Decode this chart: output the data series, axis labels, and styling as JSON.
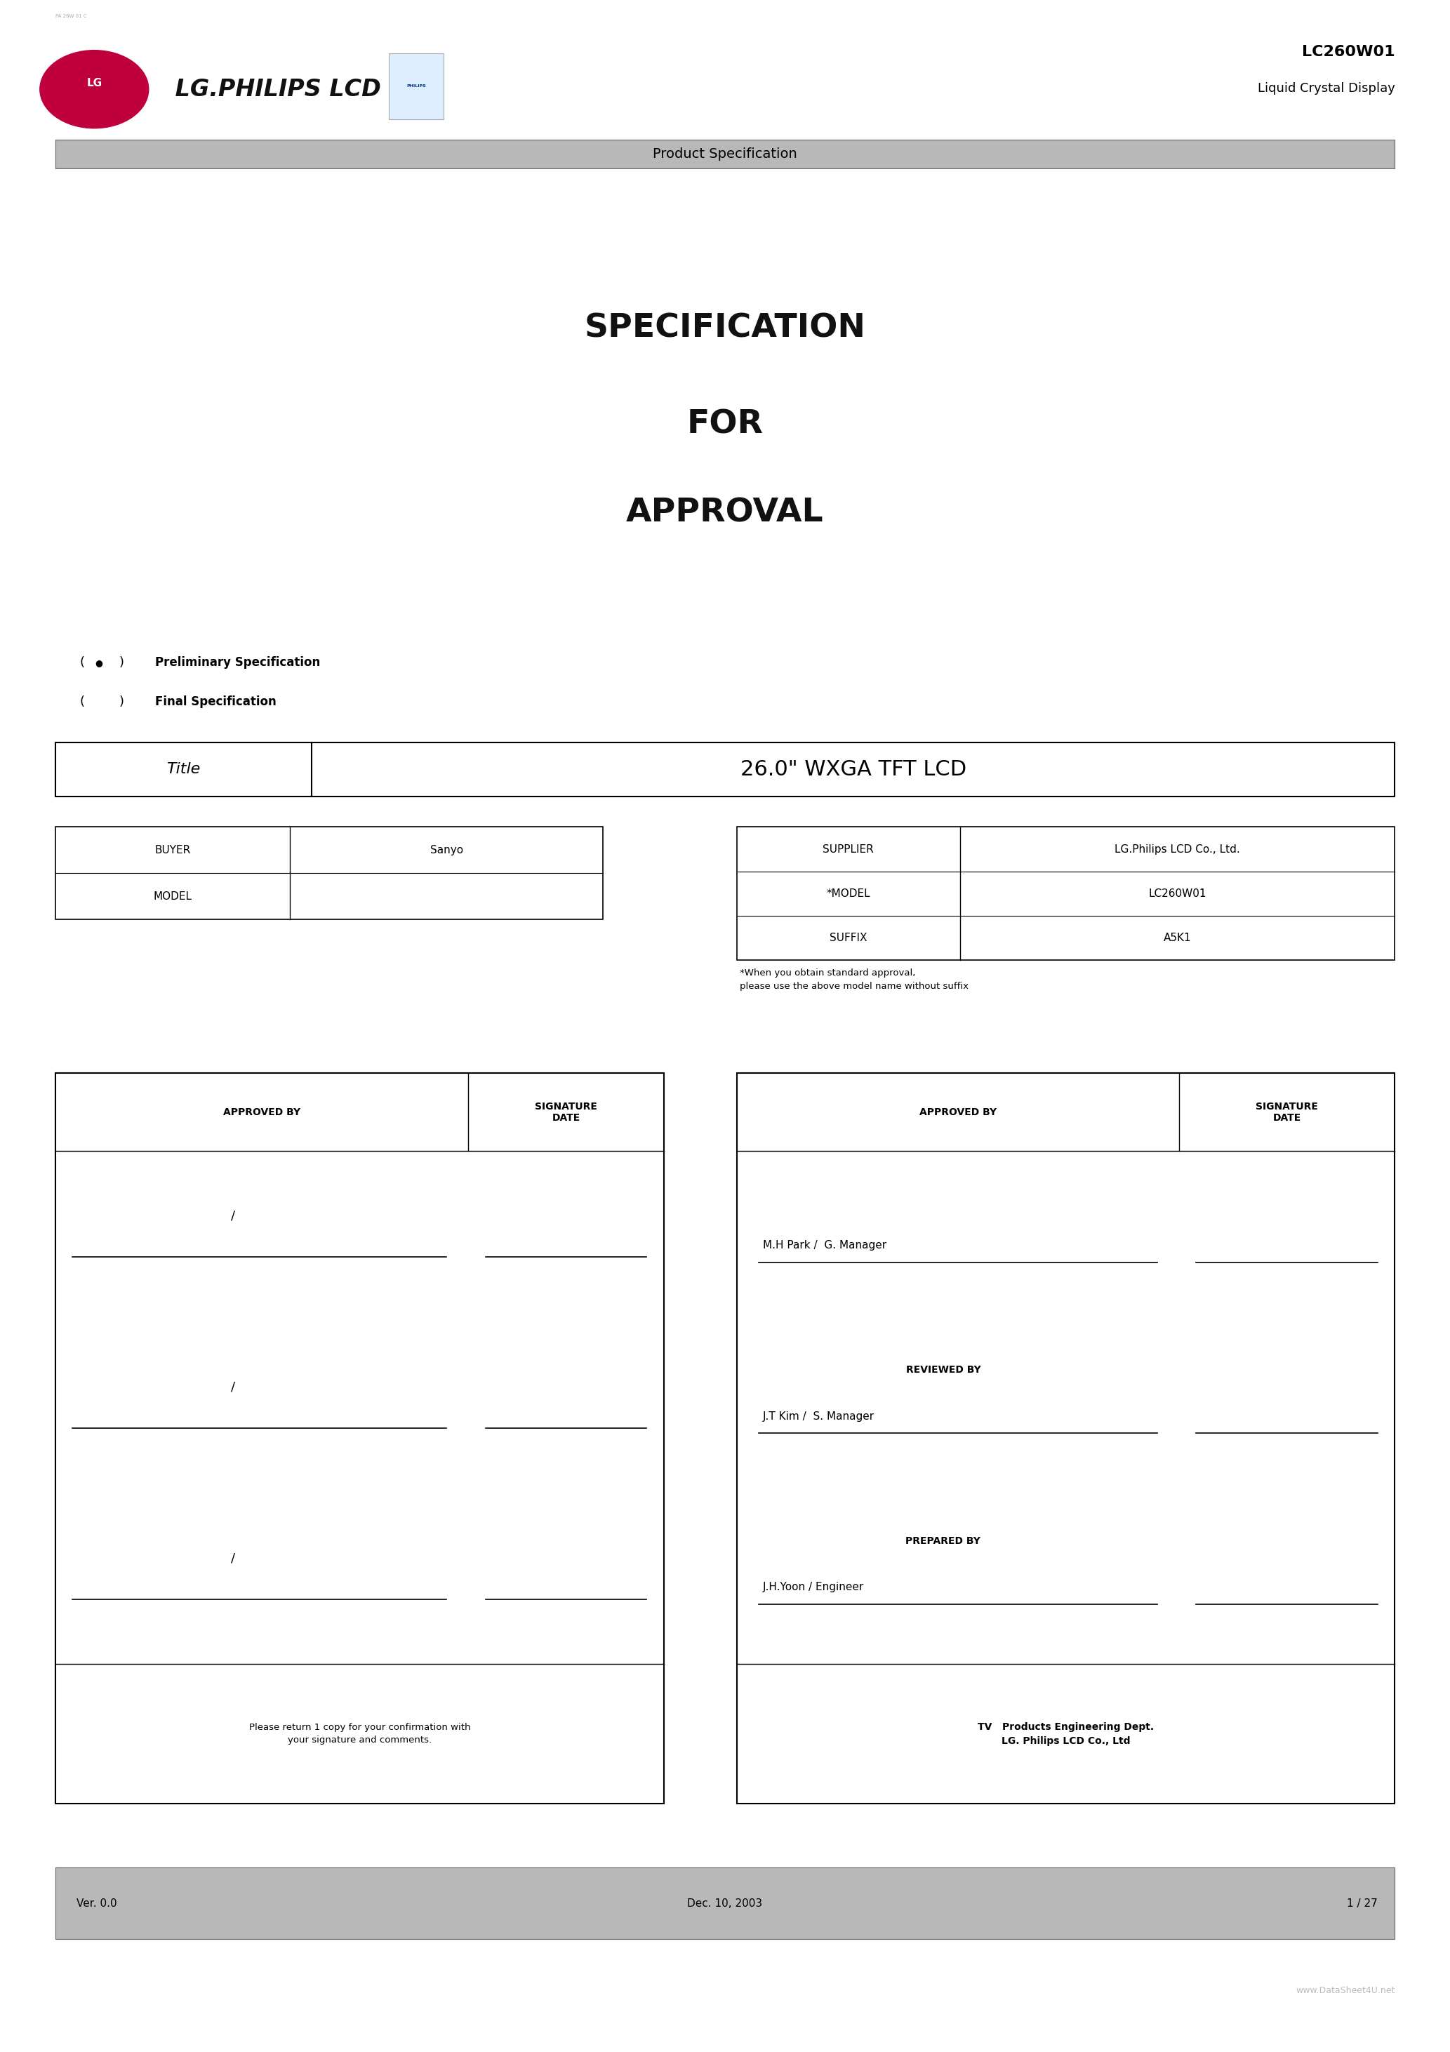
{
  "page_width": 20.66,
  "page_height": 29.24,
  "bg_color": "#ffffff",
  "header_bar_color": "#b8b8b8",
  "footer_bar_color": "#b8b8b8",
  "watermark_text": "www.DataSheet4U.net",
  "tiny_top_text": "PA 26W 01 C",
  "model_code": "LC260W01",
  "model_subtext": "Liquid Crystal Display",
  "header_center_text": "Product Specification",
  "spec_title_lines": [
    "SPECIFICATION",
    "FOR",
    "APPROVAL"
  ],
  "bullet_lines": [
    {
      "bullet": true,
      "text": "Preliminary Specification"
    },
    {
      "bullet": false,
      "text": "Final Specification"
    }
  ],
  "title_table": {
    "left_label": "Title",
    "right_value": "26.0\" WXGA TFT LCD"
  },
  "info_table_left": {
    "rows": [
      {
        "label": "BUYER",
        "value": "Sanyo"
      },
      {
        "label": "MODEL",
        "value": ""
      }
    ]
  },
  "info_table_right": {
    "rows": [
      {
        "label": "SUPPLIER",
        "value": "LG.Philips LCD Co., Ltd."
      },
      {
        "label": "*MODEL",
        "value": "LC260W01"
      },
      {
        "label": "SUFFIX",
        "value": "A5K1"
      }
    ],
    "footnote": "*When you obtain standard approval,\nplease use the above model name without suffix"
  },
  "approval_left": {
    "col1": "APPROVED BY",
    "col2": "SIGNATURE\nDATE",
    "rows": [
      "/",
      "/",
      "/"
    ],
    "footer": "Please return 1 copy for your confirmation with\nyour signature and comments."
  },
  "approval_right": {
    "col1": "APPROVED BY",
    "col2": "SIGNATURE\nDATE",
    "sections": [
      {
        "role": "M.H Park /  G. Manager",
        "label": ""
      },
      {
        "role": "J.T Kim /  S. Manager",
        "label": "REVIEWED BY"
      },
      {
        "role": "J.H.Yoon / Engineer",
        "label": "PREPARED BY"
      }
    ],
    "footer": "TV   Products Engineering Dept.\nLG. Philips LCD Co., Ltd"
  },
  "footer_left": "Ver. 0.0",
  "footer_center": "Dec. 10, 2003",
  "footer_right": "1 / 27"
}
